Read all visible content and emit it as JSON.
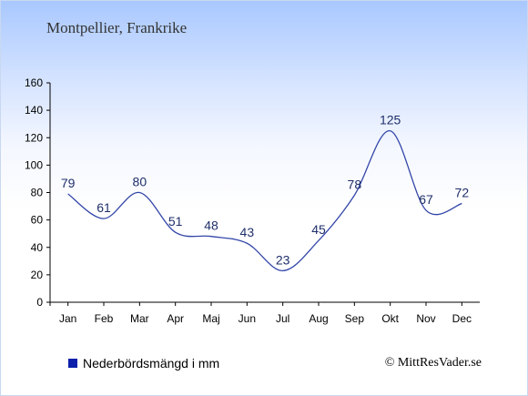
{
  "chart_data": {
    "type": "line",
    "title": "Montpellier, Frankrike",
    "categories": [
      "Jan",
      "Feb",
      "Mar",
      "Apr",
      "Maj",
      "Jun",
      "Jul",
      "Aug",
      "Sep",
      "Okt",
      "Nov",
      "Dec"
    ],
    "series": [
      {
        "name": "Nederbördsmängd i mm",
        "values": [
          79,
          61,
          80,
          51,
          48,
          43,
          23,
          45,
          78,
          125,
          67,
          72
        ],
        "color": "#0b1faa"
      }
    ],
    "ylim": [
      0,
      160
    ],
    "yticks": [
      0,
      20,
      40,
      60,
      80,
      100,
      120,
      140,
      160
    ],
    "grid": false,
    "legend_placement": "bottom-left",
    "line_color": "#3346a8"
  },
  "credit": "© MittResVader.se"
}
